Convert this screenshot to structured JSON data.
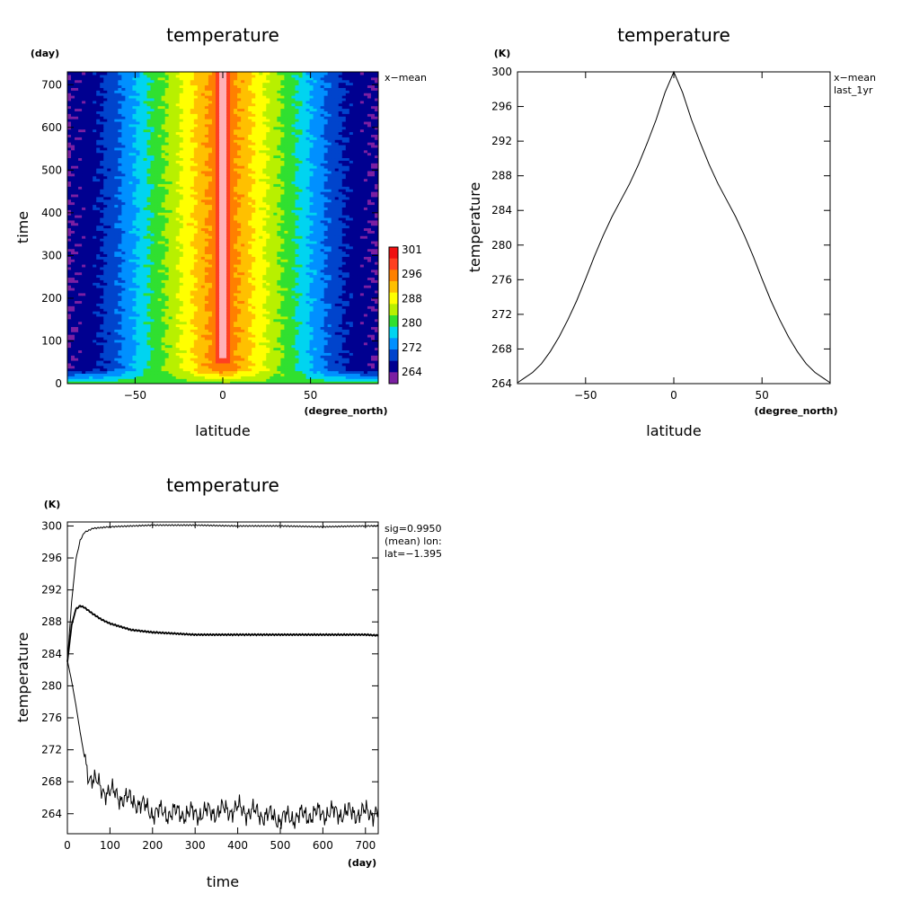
{
  "chart_data": [
    {
      "type": "heatmap",
      "title": "temperature",
      "xlabel": "latitude",
      "x_unit": "(degree_north)",
      "ylabel": "time",
      "y_unit": "(day)",
      "annotation": "x−mean",
      "xlim": [
        -88.6,
        88.6
      ],
      "ylim": [
        0,
        730
      ],
      "xticks": [
        -50,
        0,
        50
      ],
      "yticks": [
        0,
        100,
        200,
        300,
        400,
        500,
        600,
        700
      ],
      "colorbar": {
        "labels": [
          "301",
          "296",
          "288",
          "280",
          "272",
          "264"
        ],
        "levels": [
          262,
          264,
          268,
          272,
          276,
          280,
          284,
          288,
          292,
          296,
          300,
          301
        ],
        "colors": [
          "#7b1fa2",
          "#000090",
          "#0044cc",
          "#0090ff",
          "#00d4f0",
          "#30e030",
          "#b8f000",
          "#ffff00",
          "#ffc000",
          "#ff8000",
          "#ff4020",
          "#f01010"
        ]
      },
      "steady_profile_x": [
        -88.6,
        -80,
        -70,
        -60,
        -50,
        -40,
        -30,
        -20,
        -10,
        0,
        10,
        20,
        30,
        40,
        50,
        60,
        70,
        80,
        88.6
      ],
      "steady_profile_values": [
        264.1,
        265.2,
        267.6,
        271.3,
        276.0,
        281.0,
        285.3,
        290.2,
        295.4,
        300.0,
        295.4,
        290.2,
        285.3,
        281.0,
        276.0,
        271.3,
        267.6,
        265.2,
        264.1
      ],
      "initial_value": 282.5,
      "spinup_days": 35
    },
    {
      "type": "line",
      "title": "temperature",
      "xlabel": "latitude",
      "x_unit": "(degree_north)",
      "ylabel": "temperature",
      "y_unit": "(K)",
      "annotation": [
        "x−mean",
        "last_1yr"
      ],
      "xlim": [
        -88.6,
        88.6
      ],
      "ylim": [
        264,
        300
      ],
      "xticks": [
        -50,
        0,
        50
      ],
      "yticks": [
        264,
        268,
        272,
        276,
        280,
        284,
        288,
        292,
        296,
        300
      ],
      "x": [
        -88.6,
        -85,
        -80,
        -75,
        -70,
        -65,
        -60,
        -55,
        -50,
        -45,
        -40,
        -35,
        -30,
        -25,
        -20,
        -15,
        -10,
        -5,
        0,
        5,
        10,
        15,
        20,
        25,
        30,
        35,
        40,
        45,
        50,
        55,
        60,
        65,
        70,
        75,
        80,
        85,
        88.6
      ],
      "values": [
        264.1,
        264.6,
        265.3,
        266.3,
        267.7,
        269.4,
        271.4,
        273.6,
        276.1,
        278.7,
        281.1,
        283.3,
        285.2,
        287.1,
        289.3,
        291.8,
        294.5,
        297.6,
        300.0,
        297.6,
        294.5,
        291.8,
        289.3,
        287.1,
        285.2,
        283.3,
        281.1,
        278.7,
        276.1,
        273.6,
        271.4,
        269.4,
        267.7,
        266.3,
        265.3,
        264.6,
        264.1
      ]
    },
    {
      "type": "line",
      "title": "temperature",
      "xlabel": "time",
      "x_unit": "(day)",
      "ylabel": "temperature",
      "y_unit": "(K)",
      "annotation": [
        "sig=0.9950",
        "(mean) lon:",
        "lat=−1.395"
      ],
      "xlim": [
        0,
        730
      ],
      "ylim": [
        261.5,
        300.5
      ],
      "xticks": [
        0,
        100,
        200,
        300,
        400,
        500,
        600,
        700
      ],
      "yticks": [
        264,
        268,
        272,
        276,
        280,
        284,
        288,
        292,
        296,
        300
      ],
      "series": [
        {
          "x": [
            0,
            10,
            20,
            30,
            40,
            60,
            80,
            100,
            150,
            200,
            300,
            400,
            500,
            600,
            700,
            730
          ],
          "values": [
            283.0,
            290.5,
            295.8,
            298.2,
            299.2,
            299.7,
            299.8,
            299.9,
            300.0,
            300.1,
            300.1,
            300.0,
            300.0,
            299.9,
            300.0,
            300.0
          ]
        },
        {
          "x": [
            0,
            10,
            20,
            30,
            40,
            60,
            80,
            100,
            150,
            200,
            300,
            400,
            500,
            600,
            700,
            730
          ],
          "values": [
            283.0,
            287.6,
            289.6,
            290.0,
            289.8,
            289.0,
            288.3,
            287.8,
            287.0,
            286.7,
            286.4,
            286.4,
            286.4,
            286.4,
            286.4,
            286.3
          ]
        },
        {
          "x": [
            0,
            10,
            20,
            30,
            40,
            50,
            60,
            80,
            100,
            130,
            160,
            200,
            300,
            400,
            500,
            600,
            700,
            730
          ],
          "values": [
            283.2,
            280.6,
            277.6,
            274.2,
            271.1,
            268.9,
            268.3,
            267.1,
            266.7,
            266.0,
            265.5,
            264.2,
            264.0,
            264.6,
            263.4,
            264.1,
            264.1,
            264.3
          ],
          "noise": 0.9
        }
      ]
    }
  ]
}
